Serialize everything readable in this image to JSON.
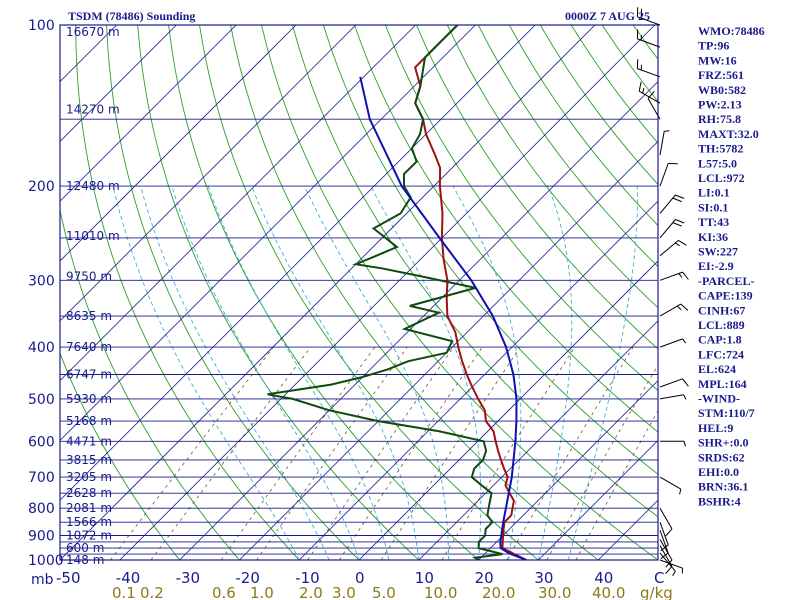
{
  "chart_data": {
    "type": "line",
    "title": "TSDM (78486) Sounding",
    "subtitle": "0000Z  7 AUG 25",
    "plot_units": {
      "pressure": "mb",
      "mixing_ratio": "g/kg"
    },
    "pressure_ticks": [
      100,
      200,
      300,
      400,
      500,
      600,
      700,
      800,
      900,
      1000
    ],
    "p_range": [
      100,
      1000
    ],
    "temp_ticks": [
      -50,
      -40,
      -30,
      -20,
      -10,
      0,
      10,
      20,
      30,
      40,
      50
    ],
    "temp_tick_text": [
      "-50",
      "-40",
      "-30",
      "-20",
      "-10",
      "0",
      "10",
      "20",
      "30",
      "40",
      "C"
    ],
    "t_range_at_surface": [
      -50,
      50
    ],
    "mixing_ratio_labels": [
      "0.1",
      "0.2",
      "0.6",
      "1.0",
      "2.0",
      "3.0",
      "5.0",
      "10.0",
      "20.0",
      "30.0",
      "40.0",
      "g/kg"
    ],
    "mixing_ratio_values": [
      0.1,
      0.2,
      0.6,
      1.0,
      2.0,
      3.0,
      5.0,
      10.0,
      20.0,
      30.0,
      40.0
    ],
    "height_labels": [
      {
        "p": 103,
        "text": "16670 m"
      },
      {
        "p": 144,
        "text": "14270 m"
      },
      {
        "p": 200,
        "text": "12480 m"
      },
      {
        "p": 248,
        "text": "11010 m"
      },
      {
        "p": 295,
        "text": "9750 m"
      },
      {
        "p": 350,
        "text": "8635 m"
      },
      {
        "p": 400,
        "text": "7640 m"
      },
      {
        "p": 450,
        "text": "6747 m"
      },
      {
        "p": 500,
        "text": "5930 m"
      },
      {
        "p": 550,
        "text": "5168 m"
      },
      {
        "p": 600,
        "text": "4471 m"
      },
      {
        "p": 650,
        "text": "3815 m"
      },
      {
        "p": 700,
        "text": "3205 m"
      },
      {
        "p": 750,
        "text": "2628 m"
      },
      {
        "p": 800,
        "text": "2081 m"
      },
      {
        "p": 850,
        "text": "1566 m"
      },
      {
        "p": 900,
        "text": "1072 m"
      },
      {
        "p": 950,
        "text": "600 m"
      },
      {
        "p": 1000,
        "text": "148 m"
      }
    ],
    "isobars": [
      100,
      150,
      200,
      250,
      300,
      350,
      400,
      450,
      500,
      550,
      600,
      650,
      700,
      750,
      800,
      850,
      900,
      925,
      950,
      975,
      1000
    ],
    "series": [
      {
        "type": "temperature",
        "color": "#a01010",
        "points": [
          [
            1000,
            28
          ],
          [
            975,
            25
          ],
          [
            950,
            22
          ],
          [
            925,
            21
          ],
          [
            900,
            20
          ],
          [
            875,
            19
          ],
          [
            850,
            18
          ],
          [
            825,
            18
          ],
          [
            800,
            17
          ],
          [
            775,
            16
          ],
          [
            750,
            14
          ],
          [
            725,
            12
          ],
          [
            700,
            11
          ],
          [
            675,
            9
          ],
          [
            650,
            7
          ],
          [
            625,
            5
          ],
          [
            600,
            3
          ],
          [
            575,
            1
          ],
          [
            550,
            -2
          ],
          [
            525,
            -4
          ],
          [
            500,
            -7
          ],
          [
            475,
            -10
          ],
          [
            450,
            -13
          ],
          [
            425,
            -16
          ],
          [
            400,
            -19
          ],
          [
            375,
            -22
          ],
          [
            350,
            -26
          ],
          [
            325,
            -29
          ],
          [
            300,
            -32
          ],
          [
            275,
            -36
          ],
          [
            250,
            -40
          ],
          [
            225,
            -44
          ],
          [
            200,
            -49
          ],
          [
            185,
            -52
          ],
          [
            175,
            -55
          ],
          [
            160,
            -60
          ],
          [
            150,
            -63
          ],
          [
            140,
            -67
          ],
          [
            130,
            -69
          ],
          [
            120,
            -73
          ],
          [
            110,
            -73
          ],
          [
            100,
            -73
          ]
        ]
      },
      {
        "type": "dewpoint",
        "color": "#0e4a0e",
        "points": [
          [
            1000,
            20
          ],
          [
            990,
            19
          ],
          [
            975,
            23
          ],
          [
            960,
            20
          ],
          [
            950,
            18
          ],
          [
            925,
            17
          ],
          [
            900,
            17
          ],
          [
            875,
            16
          ],
          [
            850,
            16
          ],
          [
            825,
            14
          ],
          [
            800,
            13
          ],
          [
            775,
            12
          ],
          [
            750,
            11
          ],
          [
            725,
            8
          ],
          [
            700,
            5
          ],
          [
            675,
            4
          ],
          [
            650,
            4
          ],
          [
            625,
            3
          ],
          [
            600,
            1
          ],
          [
            575,
            -8
          ],
          [
            550,
            -20
          ],
          [
            525,
            -30
          ],
          [
            500,
            -38
          ],
          [
            490,
            -43
          ],
          [
            470,
            -34
          ],
          [
            455,
            -30
          ],
          [
            440,
            -27
          ],
          [
            425,
            -25
          ],
          [
            410,
            -20
          ],
          [
            390,
            -21
          ],
          [
            370,
            -31
          ],
          [
            345,
            -28
          ],
          [
            335,
            -34
          ],
          [
            310,
            -26
          ],
          [
            295,
            -37
          ],
          [
            285,
            -45
          ],
          [
            280,
            -50
          ],
          [
            270,
            -48
          ],
          [
            260,
            -46
          ],
          [
            240,
            -53
          ],
          [
            225,
            -51
          ],
          [
            210,
            -52
          ],
          [
            200,
            -55
          ],
          [
            190,
            -57
          ],
          [
            180,
            -57
          ],
          [
            170,
            -60
          ],
          [
            160,
            -61
          ],
          [
            150,
            -63
          ],
          [
            140,
            -67
          ],
          [
            130,
            -69
          ],
          [
            115,
            -73
          ],
          [
            105,
            -73
          ],
          [
            100,
            -73
          ]
        ]
      },
      {
        "type": "parcel",
        "color": "#1010b0",
        "points": [
          [
            1000,
            28
          ],
          [
            972,
            24
          ],
          [
            950,
            21.7
          ],
          [
            925,
            20.6
          ],
          [
            900,
            19.7
          ],
          [
            850,
            17.8
          ],
          [
            800,
            15.9
          ],
          [
            700,
            11.7
          ],
          [
            600,
            6.3
          ],
          [
            550,
            3.1
          ],
          [
            500,
            -0.6
          ],
          [
            450,
            -5.2
          ],
          [
            400,
            -11
          ],
          [
            350,
            -18.4
          ],
          [
            300,
            -28
          ],
          [
            250,
            -40.4
          ],
          [
            200,
            -55.4
          ],
          [
            150,
            -71.9
          ],
          [
            125,
            -80.6
          ]
        ]
      }
    ],
    "wind_barbs": [
      {
        "p": 1000,
        "dir": 110,
        "spd": 5
      },
      {
        "p": 970,
        "dir": 140,
        "spd": 5
      },
      {
        "p": 940,
        "dir": 150,
        "spd": 10
      },
      {
        "p": 915,
        "dir": 150,
        "spd": 10
      },
      {
        "p": 880,
        "dir": 160,
        "spd": 10
      },
      {
        "p": 850,
        "dir": 160,
        "spd": 10
      },
      {
        "p": 800,
        "dir": 150,
        "spd": 10
      },
      {
        "p": 700,
        "dir": 120,
        "spd": 5
      },
      {
        "p": 600,
        "dir": 90,
        "spd": 5
      },
      {
        "p": 500,
        "dir": 80,
        "spd": 5
      },
      {
        "p": 475,
        "dir": 70,
        "spd": 10
      },
      {
        "p": 400,
        "dir": 70,
        "spd": 5
      },
      {
        "p": 350,
        "dir": 60,
        "spd": 15
      },
      {
        "p": 300,
        "dir": 70,
        "spd": 15
      },
      {
        "p": 270,
        "dir": 50,
        "spd": 15
      },
      {
        "p": 250,
        "dir": 40,
        "spd": 20
      },
      {
        "p": 225,
        "dir": 40,
        "spd": 20
      },
      {
        "p": 200,
        "dir": 20,
        "spd": 10
      },
      {
        "p": 175,
        "dir": 10,
        "spd": 5
      },
      {
        "p": 150,
        "dir": 330,
        "spd": 10
      },
      {
        "p": 140,
        "dir": 300,
        "spd": 15
      },
      {
        "p": 125,
        "dir": 290,
        "spd": 15
      },
      {
        "p": 110,
        "dir": 290,
        "spd": 15
      },
      {
        "p": 100,
        "dir": 290,
        "spd": 20
      }
    ]
  },
  "indices": [
    "WMO:78486",
    "TP:96",
    "MW:16",
    "FRZ:561",
    "WB0:582",
    "PW:2.13",
    "RH:75.8",
    "MAXT:32.0",
    "TH:5782",
    "L57:5.0",
    "LCL:972",
    "LI:0.1",
    "SI:0.1",
    "TT:43",
    "KI:36",
    "SW:227",
    "EI:-2.9",
    "-PARCEL-",
    "CAPE:139",
    "CINH:67",
    "LCL:889",
    "CAP:1.8",
    "LFC:724",
    "EL:624",
    "MPL:164",
    "-WIND-",
    "STM:110/7",
    "HEL:9",
    "SHR+:0.0",
    "SRDS:62",
    "EHI:0.0",
    "BRN:36.1",
    "BSHR:4"
  ],
  "colors": {
    "isobar": "#1a1a8c",
    "isotherm": "#1a1a8c",
    "dry_adiabat": "#2aa02a",
    "moist_adiabat": "#40b0d0",
    "mixing_ratio": "#6a5a2a",
    "text": "#1a1a8c",
    "wind_barb": "#000000"
  }
}
